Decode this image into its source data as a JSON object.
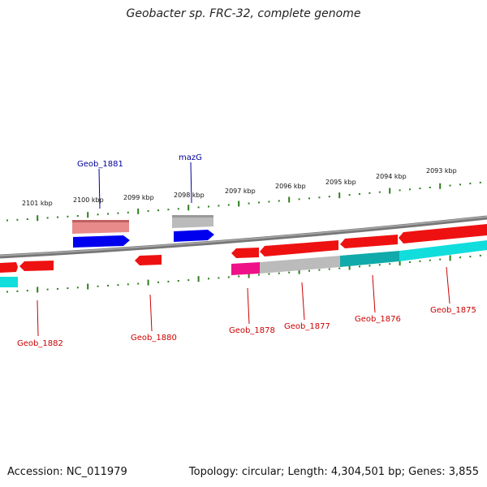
{
  "title": "Geobacter sp. FRC-32, complete genome",
  "footer": {
    "accession": "Accession: NC_011979",
    "summary": "Topology: circular; Length: 4,304,501 bp; Genes: 3,855"
  },
  "colors": {
    "axis": "#2e7d1e",
    "backbone": "#7a7a7a",
    "gene_red": "#ee1111",
    "gene_blue": "#0000ee",
    "gene_pink": "#ee8888",
    "gene_grey": "#bbbbbb",
    "gene_cyan": "#11dddd",
    "gene_teal": "#11aaaa",
    "gene_magenta": "#ee1188",
    "label_red": "#cc0000",
    "label_blue": "#000099"
  },
  "ticks": [
    "2101 kbp",
    "2100 kbp",
    "2099 kbp",
    "2098 kbp",
    "2097 kbp",
    "2096 kbp",
    "2095 kbp",
    "2094 kbp",
    "2093 kbp"
  ],
  "labels_top": [
    "Geob_1881",
    "mazG"
  ],
  "labels_bottom": [
    "Geob_1882",
    "Geob_1880",
    "Geob_1878",
    "Geob_1877",
    "Geob_1876",
    "Geob_1875"
  ]
}
